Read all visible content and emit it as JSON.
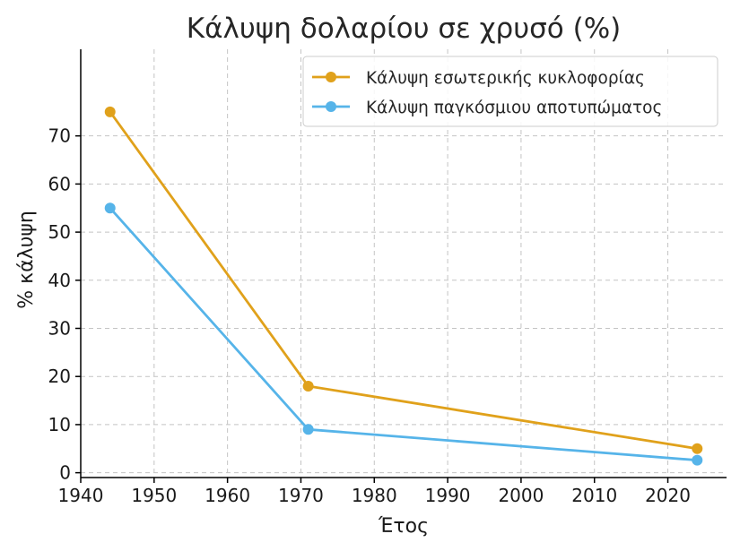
{
  "chart_data": {
    "type": "line",
    "title": "Κάλυψη δολαρίου σε χρυσό (%)",
    "xlabel": "Έτος",
    "ylabel": "% κάλυψη",
    "xlim": [
      1940,
      2028
    ],
    "ylim": [
      -1,
      88
    ],
    "xticks": [
      1940,
      1950,
      1960,
      1970,
      1980,
      1990,
      2000,
      2010,
      2020
    ],
    "yticks": [
      0,
      10,
      20,
      30,
      40,
      50,
      60,
      70
    ],
    "grid": true,
    "legend": "top-right",
    "series": [
      {
        "name": "Κάλυψη εσωτερικής κυκλοφορίας",
        "color": "#E0A11B",
        "x": [
          1944,
          1971,
          2024
        ],
        "y": [
          75,
          18,
          5
        ]
      },
      {
        "name": "Κάλυψη παγκόσμιου αποτυπώματος",
        "color": "#56B4E9",
        "x": [
          1944,
          1971,
          2024
        ],
        "y": [
          55,
          9,
          2.6
        ]
      }
    ]
  }
}
